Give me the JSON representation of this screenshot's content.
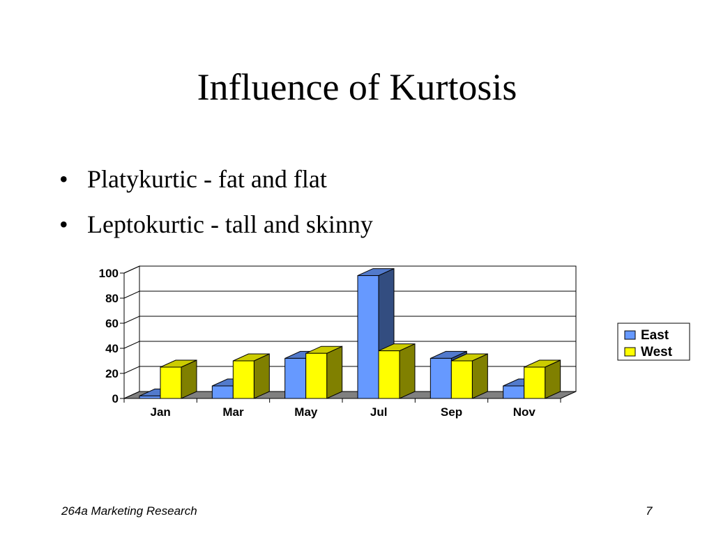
{
  "slide": {
    "title": "Influence of Kurtosis",
    "bullets": [
      "Platykurtic - fat and flat",
      "Leptokurtic - tall and skinny"
    ],
    "footer_left": "264a Marketing Research",
    "page_number": "7"
  },
  "chart_data": {
    "type": "bar",
    "categories": [
      "Jan",
      "Mar",
      "May",
      "Jul",
      "Sep",
      "Nov"
    ],
    "series": [
      {
        "name": "East",
        "values": [
          2,
          10,
          32,
          98,
          32,
          10
        ]
      },
      {
        "name": "West",
        "values": [
          25,
          30,
          36,
          38,
          30,
          25
        ]
      }
    ],
    "yticks": [
      "0",
      "20",
      "40",
      "60",
      "80",
      "100"
    ],
    "ylim": [
      0,
      100
    ],
    "grid": true,
    "legend": "right",
    "colors": {
      "East": "#6699ff",
      "West": "#ffff00",
      "floor": "#808080"
    }
  }
}
